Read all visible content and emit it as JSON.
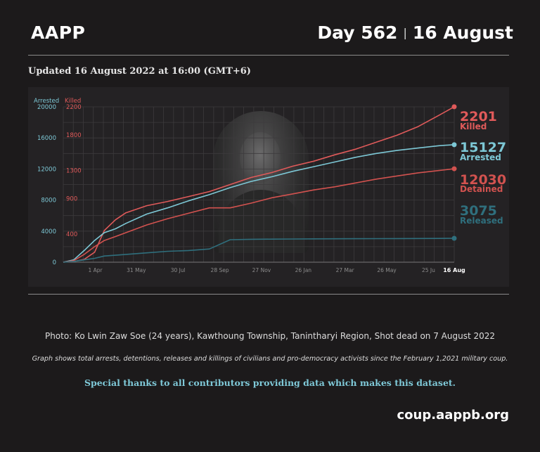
{
  "header": {
    "brand": "AAPP",
    "day": "Day 562",
    "separator": "|",
    "date": "16 August"
  },
  "updated": "Updated 16 August 2022 at 16:00 (GMT+6)",
  "photo_icon": "portrait-photo-icon",
  "colors": {
    "killed": "#e05a5a",
    "arrested": "#7dc8d6",
    "detained": "#d2524f",
    "released": "#2f6f7d",
    "background": "#1c1a1b"
  },
  "chart_data": {
    "type": "line",
    "x_axis": {
      "tick_labels": [
        "1 Apr",
        "31 May",
        "30 Jul",
        "28 Sep",
        "27 Nov",
        "26 Jan",
        "27 Mar",
        "26 May",
        "25 Ju",
        "16 Aug"
      ]
    },
    "y_axis_left": {
      "title": "Arrested",
      "range": [
        0,
        20000
      ],
      "ticks": [
        0,
        4000,
        8000,
        12000,
        16000,
        20000
      ]
    },
    "y_axis_right": {
      "title": "Killed",
      "range": [
        0,
        2200
      ],
      "ticks": [
        400,
        900,
        1300,
        1800,
        2200
      ]
    },
    "x": [
      0,
      15,
      30,
      45,
      59,
      75,
      90,
      120,
      150,
      180,
      210,
      240,
      270,
      300,
      330,
      360,
      390,
      420,
      450,
      480,
      510,
      540,
      562
    ],
    "series": [
      {
        "name": "Killed",
        "axis": "right",
        "end_value": "2201",
        "end_label": "Killed",
        "values": [
          0,
          10,
          40,
          140,
          450,
          600,
          700,
          800,
          860,
          930,
          1000,
          1100,
          1200,
          1270,
          1360,
          1430,
          1520,
          1600,
          1700,
          1800,
          1920,
          2080,
          2201
        ]
      },
      {
        "name": "Arrested",
        "axis": "left",
        "end_value": "15127",
        "end_label": "Arrested",
        "values": [
          0,
          300,
          1500,
          2800,
          3800,
          4300,
          5000,
          6200,
          7000,
          7900,
          8700,
          9600,
          10400,
          11000,
          11700,
          12300,
          12900,
          13500,
          14000,
          14400,
          14700,
          15000,
          15127
        ]
      },
      {
        "name": "Detained",
        "axis": "left",
        "end_value": "12030",
        "end_label": "Detained",
        "values": [
          0,
          200,
          1000,
          2000,
          2800,
          3300,
          3800,
          4800,
          5600,
          6300,
          7000,
          7000,
          7600,
          8300,
          8800,
          9300,
          9700,
          10200,
          10700,
          11100,
          11500,
          11800,
          12030
        ]
      },
      {
        "name": "Released",
        "axis": "left",
        "end_value": "3075",
        "end_label": "Released",
        "values": [
          0,
          100,
          300,
          500,
          800,
          900,
          1000,
          1200,
          1400,
          1500,
          1700,
          2900,
          2950,
          2970,
          2990,
          3000,
          3010,
          3020,
          3030,
          3040,
          3050,
          3060,
          3075
        ]
      }
    ],
    "grid": true,
    "legend_placement": "right end labels"
  },
  "footer": {
    "caption": "Photo: Ko Lwin Zaw Soe (24 years), Kawthoung Township, Tanintharyi Region, Shot dead  on 7 August 2022",
    "note": "Graph shows total arrests, detentions, releases and killings of civilians and pro-democracy activists since the February 1,2021 military coup.",
    "thanks": "Special thanks to all contributors providing data which makes this dataset.",
    "site": "coup.aappb.org"
  }
}
